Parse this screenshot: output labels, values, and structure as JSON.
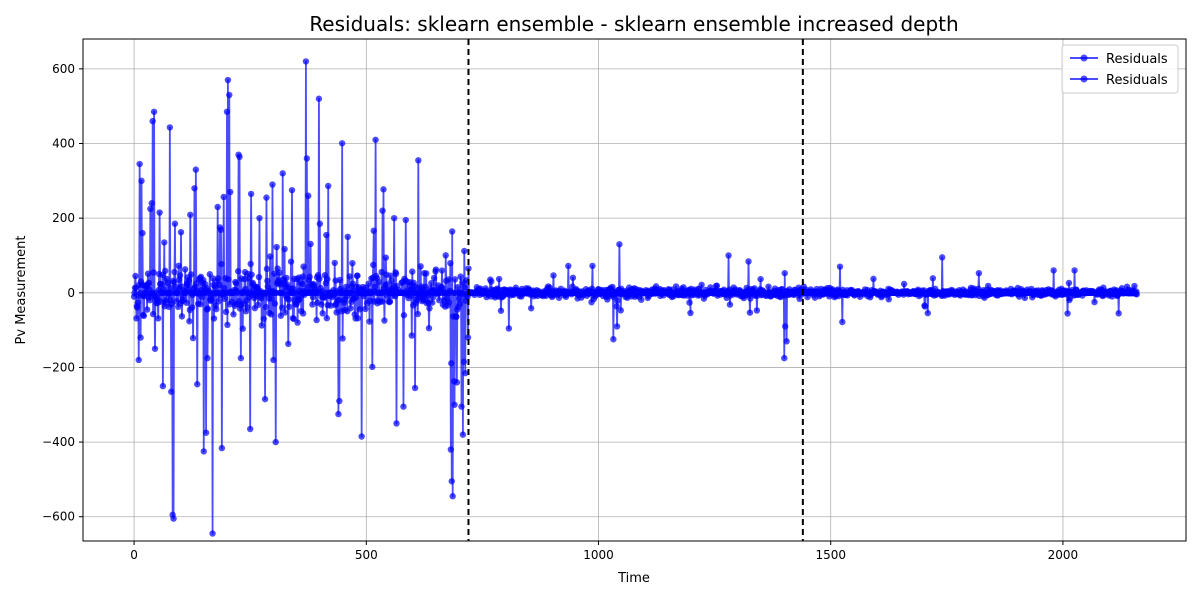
{
  "chart_data": {
    "type": "line",
    "title": "Residuals: sklearn ensemble - sklearn ensemble increased depth",
    "xlabel": "Time",
    "ylabel": "Pv Measurement",
    "xlim": [
      -110,
      2265
    ],
    "ylim": [
      -665,
      680
    ],
    "xticks": [
      0,
      500,
      1000,
      1500,
      2000
    ],
    "yticks": [
      -600,
      -400,
      -200,
      0,
      200,
      400,
      600
    ],
    "ytick_labels": [
      "−600",
      "−400",
      "−200",
      "0",
      "200",
      "400",
      "600"
    ],
    "grid": true,
    "legend_position": "top-right",
    "vlines": [
      720,
      1440
    ],
    "vline_color": "#000000",
    "series": [
      {
        "name": "Residuals",
        "color": "#0000ff",
        "generator": {
          "n": 2160,
          "segments": [
            {
              "start": 0,
              "end": 720,
              "spread": 95,
              "spike_prob": 0.07,
              "spike_scale": 380
            },
            {
              "start": 720,
              "end": 1440,
              "spread": 18,
              "spike_prob": 0.05,
              "spike_scale": 80
            },
            {
              "start": 1440,
              "end": 2160,
              "spread": 14,
              "spike_prob": 0.04,
              "spike_scale": 55
            }
          ],
          "highlights": [
            {
              "x": 3,
              "y": 45
            },
            {
              "x": 10,
              "y": -180
            },
            {
              "x": 12,
              "y": 345
            },
            {
              "x": 14,
              "y": -120
            },
            {
              "x": 16,
              "y": 300
            },
            {
              "x": 18,
              "y": 160
            },
            {
              "x": 35,
              "y": 225
            },
            {
              "x": 38,
              "y": 240
            },
            {
              "x": 40,
              "y": 460
            },
            {
              "x": 43,
              "y": 485
            },
            {
              "x": 45,
              "y": -150
            },
            {
              "x": 55,
              "y": 215
            },
            {
              "x": 62,
              "y": -250
            },
            {
              "x": 65,
              "y": 135
            },
            {
              "x": 80,
              "y": -265
            },
            {
              "x": 83,
              "y": -595
            },
            {
              "x": 85,
              "y": -605
            },
            {
              "x": 88,
              "y": 185
            },
            {
              "x": 130,
              "y": 280
            },
            {
              "x": 133,
              "y": 330
            },
            {
              "x": 136,
              "y": -245
            },
            {
              "x": 150,
              "y": -425
            },
            {
              "x": 155,
              "y": -375
            },
            {
              "x": 158,
              "y": -175
            },
            {
              "x": 180,
              "y": 230
            },
            {
              "x": 185,
              "y": 175
            },
            {
              "x": 200,
              "y": 485
            },
            {
              "x": 202,
              "y": 570
            },
            {
              "x": 205,
              "y": 530
            },
            {
              "x": 207,
              "y": 270
            },
            {
              "x": 225,
              "y": 370
            },
            {
              "x": 230,
              "y": -175
            },
            {
              "x": 250,
              "y": -365
            },
            {
              "x": 252,
              "y": 265
            },
            {
              "x": 270,
              "y": 200
            },
            {
              "x": 282,
              "y": -285
            },
            {
              "x": 285,
              "y": 255
            },
            {
              "x": 298,
              "y": 290
            },
            {
              "x": 300,
              "y": -180
            },
            {
              "x": 305,
              "y": -400
            },
            {
              "x": 320,
              "y": 320
            },
            {
              "x": 340,
              "y": 275
            },
            {
              "x": 370,
              "y": 620
            },
            {
              "x": 372,
              "y": 360
            },
            {
              "x": 375,
              "y": 260
            },
            {
              "x": 398,
              "y": 520
            },
            {
              "x": 400,
              "y": 185
            },
            {
              "x": 440,
              "y": -325
            },
            {
              "x": 442,
              "y": -290
            },
            {
              "x": 460,
              "y": 150
            },
            {
              "x": 490,
              "y": -385
            },
            {
              "x": 520,
              "y": 410
            },
            {
              "x": 535,
              "y": 220
            },
            {
              "x": 560,
              "y": 200
            },
            {
              "x": 565,
              "y": -350
            },
            {
              "x": 580,
              "y": -305
            },
            {
              "x": 585,
              "y": 195
            },
            {
              "x": 605,
              "y": -255
            },
            {
              "x": 612,
              "y": 355
            },
            {
              "x": 682,
              "y": -420
            },
            {
              "x": 684,
              "y": -505
            },
            {
              "x": 686,
              "y": -545
            },
            {
              "x": 690,
              "y": -300
            },
            {
              "x": 695,
              "y": -240
            },
            {
              "x": 705,
              "y": -305
            },
            {
              "x": 708,
              "y": -380
            },
            {
              "x": 710,
              "y": -185
            },
            {
              "x": 720,
              "y": 65
            },
            {
              "x": 1045,
              "y": 130
            },
            {
              "x": 1040,
              "y": -90
            },
            {
              "x": 1280,
              "y": 100
            },
            {
              "x": 1400,
              "y": -175
            },
            {
              "x": 1405,
              "y": -130
            },
            {
              "x": 1402,
              "y": -90
            },
            {
              "x": 1740,
              "y": 95
            },
            {
              "x": 1520,
              "y": 70
            },
            {
              "x": 1980,
              "y": 60
            },
            {
              "x": 2025,
              "y": 60
            },
            {
              "x": 2120,
              "y": -55
            }
          ],
          "seed": 12345
        }
      },
      {
        "name": "Residuals",
        "color": "#0000ff"
      }
    ]
  }
}
